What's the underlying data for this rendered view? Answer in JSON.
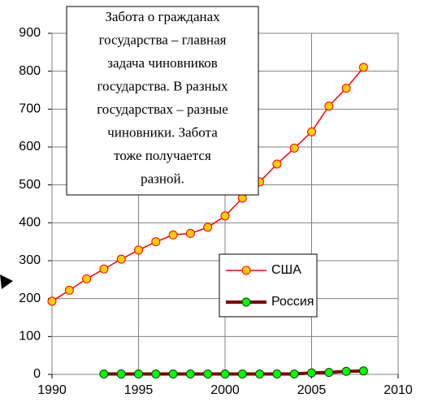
{
  "chart_data": {
    "type": "line",
    "annotation": [
      "Забота о гражданах",
      "государства – главная",
      "задача чиновников",
      "государства. В разных",
      "государствах – разные",
      "чиновники. Забота",
      "тоже получается",
      "разной."
    ],
    "xlim": [
      1990,
      2010
    ],
    "xticks": [
      1990,
      1995,
      2000,
      2005,
      2010
    ],
    "ylim": [
      0,
      900
    ],
    "yticks": [
      0,
      100,
      200,
      300,
      400,
      500,
      600,
      700,
      800,
      900
    ],
    "grid": true,
    "legend_position": "right",
    "series": [
      {
        "name": "США",
        "color": "#ff0000",
        "marker_color": "#ffcc00",
        "x": [
          1990,
          1991,
          1992,
          1993,
          1994,
          1995,
          1996,
          1997,
          1998,
          1999,
          2000,
          2001,
          2002,
          2003,
          2004,
          2005,
          2006,
          2007,
          2008
        ],
        "values": [
          193,
          222,
          252,
          278,
          304,
          328,
          350,
          368,
          372,
          388,
          418,
          465,
          508,
          555,
          597,
          640,
          708,
          755,
          810
        ]
      },
      {
        "name": "Россия",
        "color": "#800000",
        "marker_color": "#00ff00",
        "x": [
          1993,
          1994,
          1995,
          1996,
          1997,
          1998,
          1999,
          2000,
          2001,
          2002,
          2003,
          2004,
          2005,
          2006,
          2007,
          2008
        ],
        "values": [
          1,
          1,
          1,
          1,
          1,
          1,
          1,
          1,
          1,
          1,
          1,
          1,
          4,
          5,
          8,
          9
        ]
      }
    ]
  }
}
